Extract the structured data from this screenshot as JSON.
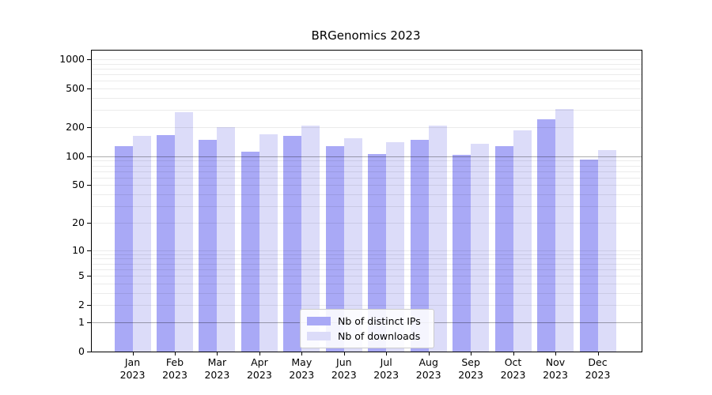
{
  "chart_data": {
    "type": "bar",
    "title": "BRGenomics 2023",
    "scale": "log1p",
    "categories": [
      "Jan",
      "Feb",
      "Mar",
      "Apr",
      "May",
      "Jun",
      "Jul",
      "Aug",
      "Sep",
      "Oct",
      "Nov",
      "Dec"
    ],
    "year_label": "2023",
    "series": [
      {
        "name": "Nb of distinct IPs",
        "color": "#a9a9f6",
        "values": [
          127,
          166,
          149,
          112,
          164,
          128,
          105,
          147,
          103,
          128,
          242,
          92
        ]
      },
      {
        "name": "Nb of downloads",
        "color": "#dcdcf9",
        "values": [
          163,
          287,
          200,
          170,
          207,
          155,
          140,
          206,
          135,
          185,
          310,
          115
        ]
      }
    ],
    "yticks": [
      0,
      1,
      2,
      5,
      10,
      20,
      50,
      100,
      200,
      500,
      1000
    ],
    "minor_gridlines": [
      3,
      4,
      6,
      7,
      8,
      9,
      30,
      40,
      60,
      70,
      80,
      90,
      300,
      400,
      600,
      700,
      800,
      900
    ],
    "emphasized_gridlines": [
      1,
      100
    ],
    "ylim": [
      0,
      1250
    ],
    "xlabel": "",
    "ylabel": "",
    "grid": true,
    "legend_position": "inside-bottom-center",
    "colors": {
      "bar_distinct_ips": "#a9a9f6",
      "bar_downloads": "#dcdcf9",
      "grid_minor": "rgba(0,0,0,0.08)",
      "grid_major": "rgba(0,0,0,0.32)",
      "spine": "#000000",
      "legend_border": "#cccccc"
    }
  }
}
